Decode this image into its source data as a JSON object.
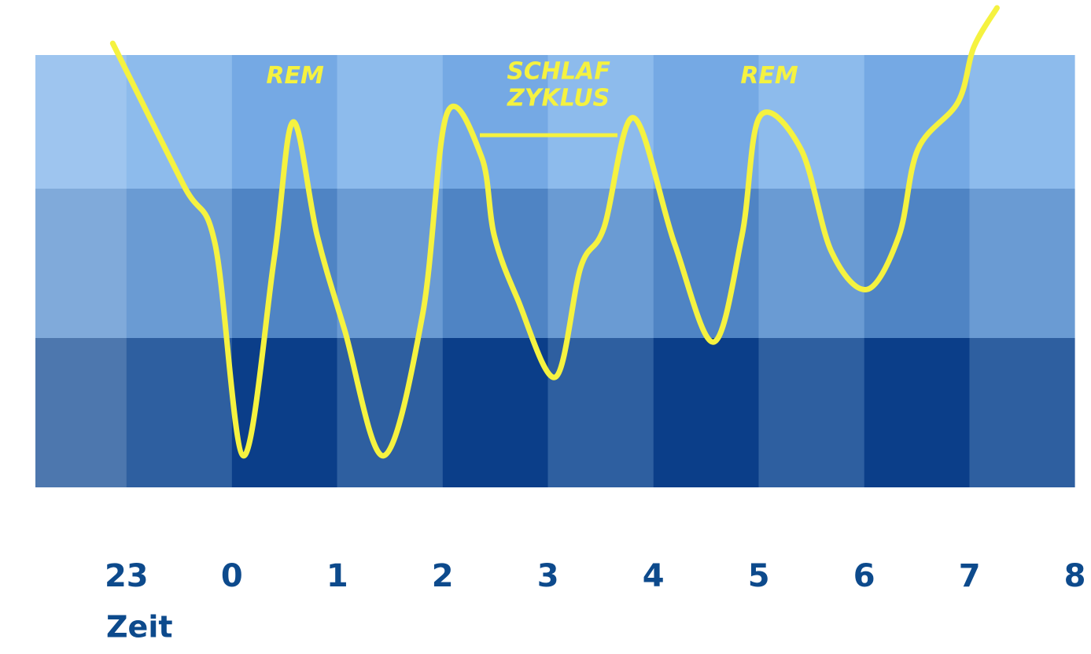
{
  "chart_data": {
    "type": "line",
    "x_label": "Zeit",
    "annotations": [
      {
        "lines": [
          "REM"
        ],
        "x": 1.6,
        "y": 95
      },
      {
        "lines": [
          "SCHLAF",
          "ZYKLUS"
        ],
        "x": 4.1,
        "y": 96
      },
      {
        "lines": [
          "REM"
        ],
        "x": 6.1,
        "y": 95
      }
    ],
    "xlim": [
      -1.2,
      9.1
    ],
    "xticks": [
      {
        "value": 0,
        "label": "23"
      },
      {
        "value": 1,
        "label": "0"
      },
      {
        "value": 2,
        "label": "1"
      },
      {
        "value": 3,
        "label": "2"
      },
      {
        "value": 4,
        "label": "3"
      },
      {
        "value": 5,
        "label": "4"
      },
      {
        "value": 6,
        "label": "5"
      },
      {
        "value": 7,
        "label": "6"
      },
      {
        "value": 8,
        "label": "7"
      },
      {
        "value": 9,
        "label": "8"
      }
    ],
    "ylim": [
      0,
      100
    ],
    "series": [
      {
        "color": "#f5f240",
        "x": [
          -0.13,
          0.54,
          0.84,
          1.11,
          1.4,
          1.58,
          1.81,
          2.07,
          2.44,
          2.81,
          3.04,
          3.37,
          3.49,
          3.71,
          4.07,
          4.31,
          4.53,
          4.81,
          5.2,
          5.57,
          5.84,
          6.01,
          6.4,
          6.69,
          7.03,
          7.33,
          7.51,
          7.89,
          8.04,
          8.26
        ],
        "values": [
          102.7,
          70,
          56.4,
          7.3,
          52.7,
          84.5,
          58.2,
          36.4,
          7.3,
          40,
          86.4,
          76.4,
          58.2,
          43.6,
          25.5,
          50.9,
          60,
          85.5,
          56.4,
          33.6,
          58.2,
          85.8,
          78.2,
          54.5,
          45.8,
          58.2,
          78.2,
          89.1,
          101.8,
          110.9
        ]
      }
    ]
  }
}
